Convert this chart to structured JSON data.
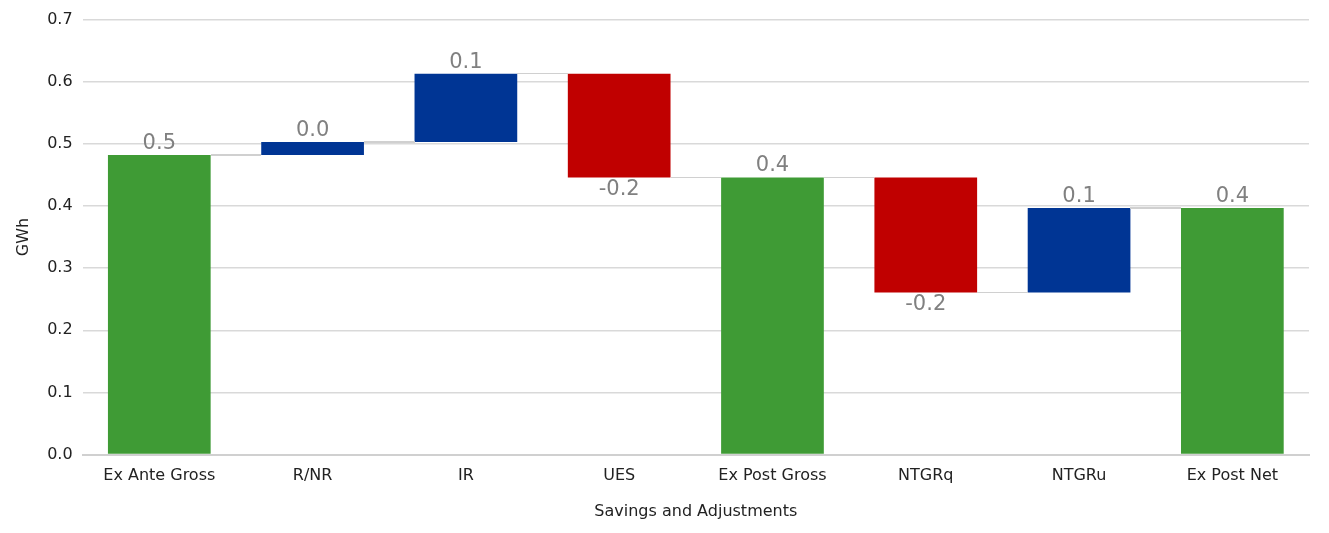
{
  "chart_data": {
    "type": "bar",
    "xlabel": "Savings and Adjustments",
    "ylabel": "GWh",
    "categories": [
      "Ex Ante Gross",
      "R/NR",
      "IR",
      "UES",
      "Ex Post Gross",
      "NTGRq",
      "NTGRu",
      "Ex Post Net"
    ],
    "base": [
      0,
      0.482,
      0.503,
      0.613,
      0,
      0.446,
      0.261,
      0
    ],
    "values": [
      0.482,
      0.021,
      0.11,
      -0.167,
      0.446,
      -0.185,
      0.136,
      0.397
    ],
    "value_labels": [
      "0.5",
      "0.0",
      "0.1",
      "-0.2",
      "0.4",
      "-0.2",
      "0.1",
      "0.4"
    ],
    "colors": [
      "#3f9b35",
      "#003594",
      "#003594",
      "#c00000",
      "#3f9b35",
      "#c00000",
      "#003594",
      "#3f9b35"
    ],
    "ylim": [
      0,
      0.7
    ],
    "yticks": [
      {
        "value": 0,
        "label": "0.0"
      },
      0.1,
      0.2,
      0.3,
      0.4,
      0.5,
      0.6,
      0.7
    ],
    "grid": "y",
    "legend": false
  }
}
